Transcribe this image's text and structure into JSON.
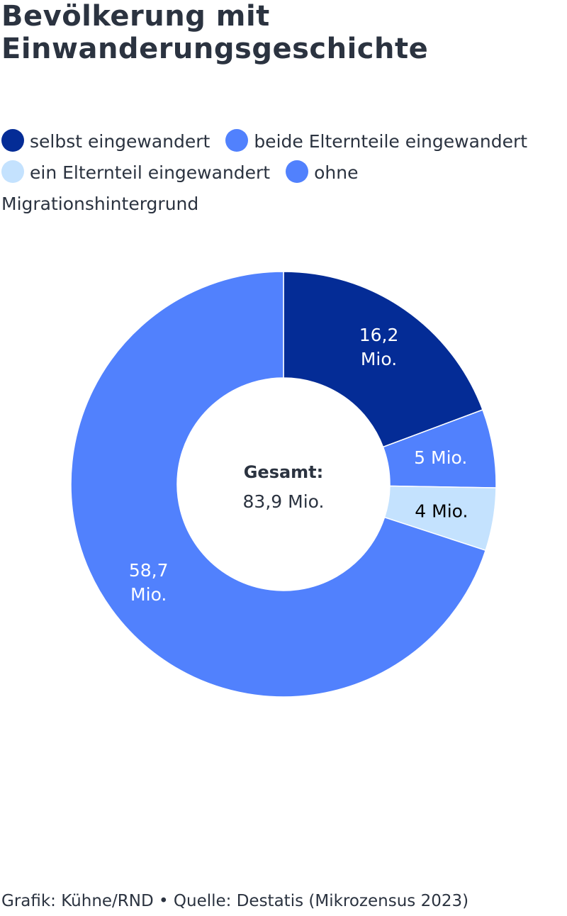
{
  "chart_data": {
    "type": "pie",
    "variant": "donut",
    "title_lines": [
      "Bevölkerung mit",
      "Einwanderungsgeschichte"
    ],
    "legend_placement": "top",
    "series": [
      {
        "name": "selbst eingewandert",
        "value": 16.2,
        "label": "16,2 Mio.",
        "color": "#042c96",
        "label_color": "#ffffff"
      },
      {
        "name": "beide Elternteile eingewandert",
        "value": 5.0,
        "label": "5 Mio.",
        "color": "#5181fd",
        "label_color": "#ffffff"
      },
      {
        "name": "ein Elternteil eingewandert",
        "value": 4.0,
        "label": "4 Mio.",
        "color": "#c4e2fe",
        "label_color": "#000000"
      },
      {
        "name": "ohne Migrationshintergrund",
        "value": 58.7,
        "label": "58,7 Mio.",
        "color": "#5181fd",
        "label_color": "#ffffff"
      }
    ],
    "center": {
      "title": "Gesamt:",
      "value": "83,9 Mio."
    }
  },
  "footer": "Grafik: Kühne/RND • Quelle: Destatis (Mikrozensus 2023)"
}
